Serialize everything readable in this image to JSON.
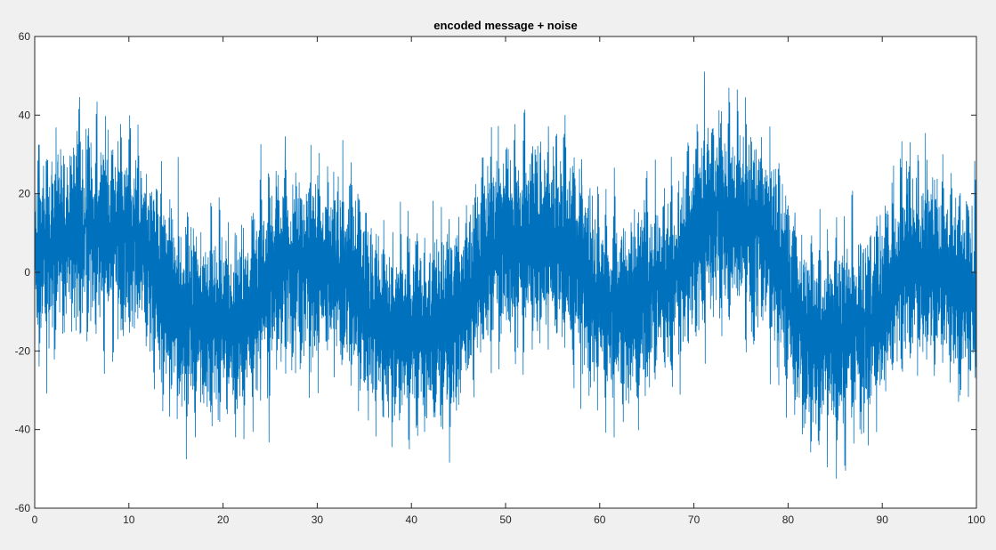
{
  "chart_data": {
    "type": "line",
    "title": "encoded message + noise",
    "xlabel": "",
    "ylabel": "",
    "xlim": [
      0,
      100
    ],
    "ylim": [
      -60,
      60
    ],
    "xticks": [
      0,
      10,
      20,
      30,
      40,
      50,
      60,
      70,
      80,
      90,
      100
    ],
    "yticks": [
      -60,
      -40,
      -20,
      0,
      20,
      40,
      60
    ],
    "xtick_labels": [
      "0",
      "10",
      "20",
      "30",
      "40",
      "50",
      "60",
      "70",
      "80",
      "90",
      "100"
    ],
    "ytick_labels": [
      "-60",
      "-40",
      "-20",
      "0",
      "20",
      "40",
      "60"
    ],
    "grid": false,
    "box": true,
    "series": [
      {
        "name": "encoded message + noise",
        "color": "#0072bd",
        "envelope_description": "dense noisy oscillation; slowly varying baseline",
        "sample_count": 10001,
        "x_start": 0,
        "x_end": 100,
        "baseline_points": {
          "x": [
            0,
            5,
            10,
            16,
            21,
            27,
            32,
            38,
            43,
            50,
            55,
            62,
            67,
            72,
            77,
            83,
            88,
            93,
            100
          ],
          "y": [
            5,
            11,
            8,
            -11,
            -13,
            3,
            0,
            -15,
            -14,
            8,
            8,
            -10,
            -2,
            15,
            10,
            -18,
            -14,
            3,
            -5
          ]
        },
        "noise_amplitude": 14,
        "extremes": {
          "max": 54,
          "max_x": 72.5,
          "min": -52,
          "min_x": 40.5
        }
      }
    ]
  }
}
